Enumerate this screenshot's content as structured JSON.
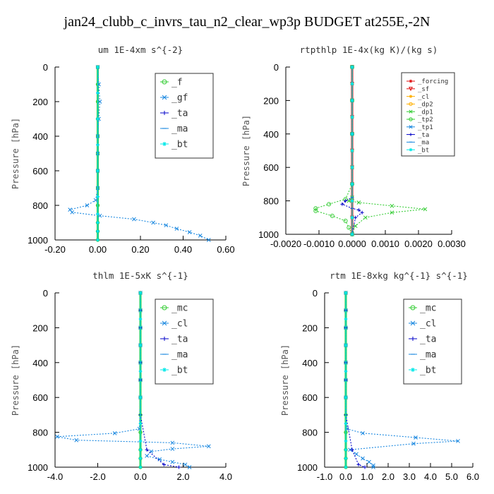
{
  "title": "jan24_clubb_c_invrs_tau_n2_clear_wp3p  BUDGET at255E,-2N",
  "colors": {
    "green": "#33cc33",
    "blue": "#1a88e0",
    "navy": "#0000c8",
    "cyan": "#00e8e8",
    "red": "#e01010",
    "orange": "#ffb000"
  },
  "chart_data": [
    {
      "type": "line",
      "title": "um  1E-4xm s^{-2}",
      "ylabel": "Pressure [hPa]",
      "xlim": [
        -0.2,
        0.6
      ],
      "ylim": [
        1000,
        0
      ],
      "xticks": [
        "-0.20",
        "0.00",
        "0.20",
        "0.40",
        "0.60"
      ],
      "yticks": [
        "0",
        "200",
        "400",
        "600",
        "800",
        "1000"
      ],
      "legend_position": "top-right",
      "series": [
        {
          "name": "_f",
          "color": "#33cc33",
          "marker": "o",
          "x": [
            0,
            0,
            0,
            0,
            0,
            0,
            0,
            0,
            0,
            0,
            0,
            0
          ],
          "y": [
            0,
            100,
            200,
            300,
            400,
            500,
            600,
            700,
            800,
            900,
            950,
            1000
          ]
        },
        {
          "name": "_gf",
          "color": "#1a88e0",
          "marker": "x",
          "x": [
            0,
            0.005,
            0.01,
            0.005,
            0,
            0,
            0,
            0,
            -0.01,
            -0.05,
            -0.13,
            -0.12,
            0.01,
            0.17,
            0.26,
            0.32,
            0.37,
            0.43,
            0.48,
            0.52
          ],
          "y": [
            0,
            100,
            200,
            300,
            400,
            500,
            600,
            700,
            770,
            800,
            825,
            840,
            860,
            880,
            900,
            915,
            935,
            955,
            975,
            1000
          ]
        },
        {
          "name": "_ta",
          "color": "#0000c8",
          "marker": "+",
          "x": [
            0,
            0,
            0,
            0,
            0,
            0,
            0,
            0,
            0,
            0
          ],
          "y": [
            0,
            150,
            300,
            450,
            600,
            750,
            850,
            900,
            950,
            1000
          ]
        },
        {
          "name": "_ma",
          "color": "#1a88e0",
          "marker": "-",
          "x": [
            0,
            0,
            0,
            0,
            0,
            0,
            0,
            0,
            0,
            0
          ],
          "y": [
            0,
            150,
            300,
            450,
            600,
            750,
            850,
            900,
            950,
            1000
          ]
        },
        {
          "name": "_bt",
          "color": "#00e8e8",
          "marker": "*",
          "x": [
            0,
            0,
            0,
            0,
            0,
            0,
            0,
            0,
            0,
            0
          ],
          "y": [
            0,
            150,
            300,
            450,
            600,
            750,
            850,
            900,
            950,
            1000
          ]
        }
      ]
    },
    {
      "type": "line",
      "title": "rtpthlp  1E-4x(kg K)/(kg s)",
      "ylabel": "Pressure [hPa]",
      "xlim": [
        -0.002,
        0.003
      ],
      "ylim": [
        1000,
        0
      ],
      "xticks": [
        "-0.0020",
        "-0.0010",
        "0.0000",
        "0.0010",
        "0.0020",
        "0.0030"
      ],
      "yticks": [
        "0",
        "200",
        "400",
        "600",
        "800",
        "1000"
      ],
      "legend_position": "top-right",
      "series": [
        {
          "name": "_forcing",
          "color": "#e01010",
          "marker": "*",
          "x": [
            0,
            0,
            0,
            0,
            0,
            0,
            0,
            0,
            0,
            0,
            0
          ],
          "y": [
            0,
            100,
            200,
            300,
            400,
            500,
            600,
            700,
            800,
            900,
            1000
          ]
        },
        {
          "name": "_sf",
          "color": "#e01010",
          "marker": "v",
          "x": [
            0,
            0,
            0,
            0,
            0,
            0,
            0,
            0,
            0,
            0,
            0
          ],
          "y": [
            0,
            100,
            200,
            300,
            400,
            500,
            600,
            700,
            800,
            900,
            1000
          ]
        },
        {
          "name": "_cl",
          "color": "#ffb000",
          "marker": "*",
          "x": [
            0,
            0,
            0,
            0,
            0,
            0,
            0,
            0,
            0,
            0,
            0
          ],
          "y": [
            0,
            100,
            200,
            300,
            400,
            500,
            600,
            700,
            800,
            900,
            1000
          ]
        },
        {
          "name": "_dp2",
          "color": "#ffb000",
          "marker": "o",
          "x": [
            0,
            0,
            0,
            0,
            0,
            0,
            0,
            0,
            0,
            0,
            0
          ],
          "y": [
            0,
            100,
            200,
            300,
            400,
            500,
            600,
            700,
            800,
            900,
            1000
          ]
        },
        {
          "name": "_dp1",
          "color": "#33cc33",
          "marker": "x",
          "x": [
            0,
            0,
            0,
            0,
            0,
            -0.0001,
            0.0002,
            0.0012,
            0.0022,
            0.0012,
            0.0004,
            0.0001,
            0
          ],
          "y": [
            0,
            200,
            400,
            600,
            780,
            800,
            810,
            830,
            850,
            870,
            900,
            950,
            1000
          ]
        },
        {
          "name": "_tp2",
          "color": "#33cc33",
          "marker": "o",
          "x": [
            0,
            0,
            0,
            0,
            -0.0002,
            -0.0007,
            -0.0011,
            -0.0011,
            -0.0006,
            -0.0002,
            -0.0001,
            0
          ],
          "y": [
            0,
            200,
            400,
            700,
            790,
            820,
            845,
            860,
            890,
            920,
            960,
            1000
          ]
        },
        {
          "name": "_tp1",
          "color": "#1a88e0",
          "marker": "x",
          "x": [
            0,
            0,
            0,
            0,
            0,
            0,
            0,
            0,
            0,
            0,
            0
          ],
          "y": [
            0,
            100,
            200,
            300,
            400,
            500,
            600,
            700,
            800,
            900,
            1000
          ]
        },
        {
          "name": "_ta",
          "color": "#0000c8",
          "marker": "+",
          "x": [
            0,
            0,
            0,
            -0.0002,
            -0.0003,
            0,
            0.0002,
            0.0003,
            0.0001,
            0
          ],
          "y": [
            0,
            400,
            780,
            800,
            820,
            845,
            855,
            870,
            900,
            1000
          ]
        },
        {
          "name": "_ma",
          "color": "#1a88e0",
          "marker": "-",
          "x": [
            0,
            0,
            0,
            0,
            0,
            0,
            0,
            0,
            0,
            0,
            0
          ],
          "y": [
            0,
            100,
            200,
            300,
            400,
            500,
            600,
            700,
            800,
            900,
            1000
          ]
        },
        {
          "name": "_bt",
          "color": "#00e8e8",
          "marker": "*",
          "x": [
            0,
            0,
            0,
            0,
            0,
            0,
            0,
            0,
            0,
            0,
            0
          ],
          "y": [
            0,
            100,
            200,
            300,
            400,
            500,
            600,
            700,
            800,
            900,
            1000
          ]
        }
      ]
    },
    {
      "type": "line",
      "title": "thlm  1E-5xK s^{-1}",
      "ylabel": "Pressure [hPa]",
      "xlim": [
        -4,
        4
      ],
      "ylim": [
        1000,
        0
      ],
      "xticks": [
        "-4.0",
        "-2.0",
        "0.0",
        "2.0",
        "4.0"
      ],
      "yticks": [
        "0",
        "200",
        "400",
        "600",
        "800",
        "1000"
      ],
      "legend_position": "top-right",
      "series": [
        {
          "name": "_mc",
          "color": "#33cc33",
          "marker": "o",
          "x": [
            0,
            0,
            0,
            0,
            0,
            0,
            0,
            0,
            0,
            0,
            0,
            0
          ],
          "y": [
            0,
            100,
            200,
            300,
            400,
            500,
            600,
            700,
            800,
            900,
            950,
            1000
          ]
        },
        {
          "name": "_cl",
          "color": "#1a88e0",
          "marker": "x",
          "x": [
            0,
            0,
            0,
            0,
            0,
            0,
            0,
            -0.05,
            -1.2,
            -3.9,
            -3.0,
            1.5,
            3.2,
            1.5,
            0.5,
            0.3,
            0.9,
            1.5,
            2.1,
            2.3
          ],
          "y": [
            0,
            100,
            200,
            300,
            400,
            500,
            600,
            780,
            805,
            825,
            845,
            860,
            880,
            895,
            910,
            935,
            955,
            970,
            985,
            1000
          ]
        },
        {
          "name": "_ta",
          "color": "#0000c8",
          "marker": "+",
          "x": [
            0,
            0,
            0,
            0,
            0,
            0,
            0,
            0,
            0.3,
            1.1,
            1.8
          ],
          "y": [
            0,
            100,
            200,
            300,
            400,
            500,
            600,
            700,
            900,
            985,
            1000
          ]
        },
        {
          "name": "_ma",
          "color": "#1a88e0",
          "marker": "-",
          "x": [
            0,
            0,
            0,
            0,
            0,
            0,
            0,
            0,
            0,
            0
          ],
          "y": [
            0,
            150,
            300,
            450,
            600,
            750,
            850,
            900,
            950,
            1000
          ]
        },
        {
          "name": "_bt",
          "color": "#00e8e8",
          "marker": "*",
          "x": [
            0,
            0,
            0,
            0,
            0,
            0,
            0,
            0,
            0,
            0
          ],
          "y": [
            0,
            150,
            300,
            450,
            600,
            750,
            850,
            900,
            950,
            1000
          ]
        }
      ]
    },
    {
      "type": "line",
      "title": "rtm  1E-8xkg kg^{-1} s^{-1}",
      "ylabel": "Pressure [hPa]",
      "xlim": [
        -1,
        6
      ],
      "ylim": [
        1000,
        0
      ],
      "xticks": [
        "-1.0",
        "0.0",
        "1.0",
        "2.0",
        "3.0",
        "4.0",
        "5.0",
        "6.0"
      ],
      "yticks": [
        "0",
        "200",
        "400",
        "600",
        "800",
        "1000"
      ],
      "legend_position": "top-right",
      "series": [
        {
          "name": "_mc",
          "color": "#33cc33",
          "marker": "o",
          "x": [
            0,
            0,
            0,
            0,
            0,
            0,
            0,
            0,
            0,
            0,
            0,
            0
          ],
          "y": [
            0,
            100,
            200,
            300,
            400,
            500,
            600,
            700,
            800,
            900,
            950,
            1000
          ]
        },
        {
          "name": "_cl",
          "color": "#1a88e0",
          "marker": "x",
          "x": [
            0,
            0,
            0,
            0,
            0,
            0,
            0,
            0.05,
            0.8,
            3.3,
            5.3,
            3.2,
            0.2,
            0.5,
            0.8,
            1.1,
            1.3,
            1.3
          ],
          "y": [
            0,
            100,
            200,
            300,
            400,
            500,
            600,
            780,
            805,
            830,
            850,
            865,
            900,
            925,
            950,
            970,
            990,
            1000
          ]
        },
        {
          "name": "_ta",
          "color": "#0000c8",
          "marker": "+",
          "x": [
            0,
            0,
            0,
            0,
            0,
            0,
            0,
            0,
            0.3,
            0.6,
            0.9
          ],
          "y": [
            0,
            100,
            200,
            300,
            400,
            500,
            600,
            700,
            900,
            985,
            1000
          ]
        },
        {
          "name": "_ma",
          "color": "#1a88e0",
          "marker": "-",
          "x": [
            0,
            0,
            0,
            0,
            0,
            0,
            0,
            0,
            0,
            0
          ],
          "y": [
            0,
            150,
            300,
            450,
            600,
            750,
            850,
            900,
            950,
            1000
          ]
        },
        {
          "name": "_bt",
          "color": "#00e8e8",
          "marker": "*",
          "x": [
            0,
            0,
            0,
            0,
            0,
            0,
            0,
            0,
            0,
            0
          ],
          "y": [
            0,
            150,
            300,
            450,
            600,
            750,
            850,
            900,
            950,
            1000
          ]
        }
      ]
    }
  ]
}
